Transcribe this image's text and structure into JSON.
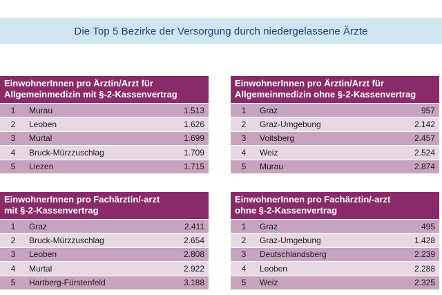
{
  "title": "Die Top 5 Bezirke der Versorgung durch niedergelassene Ärzte",
  "panels": [
    {
      "header": [
        "EinwohnerInnen pro Ärztin/Arzt für",
        "Allgemeinmedizin mit §-2-Kassenvertrag"
      ],
      "rows": [
        {
          "rank": "1",
          "name": "Murau",
          "value": "1.513"
        },
        {
          "rank": "2",
          "name": "Leoben",
          "value": "1.626"
        },
        {
          "rank": "3",
          "name": "Murtal",
          "value": "1.699"
        },
        {
          "rank": "4",
          "name": "Bruck-Mürzzuschlag",
          "value": "1.709"
        },
        {
          "rank": "5",
          "name": "Liezen",
          "value": "1.715"
        }
      ]
    },
    {
      "header": [
        "EinwohnerInnen pro Ärztin/Arzt für",
        "Allgemeinmedizin ohne §-2-Kassenvertrag"
      ],
      "rows": [
        {
          "rank": "1",
          "name": "Graz",
          "value": "957"
        },
        {
          "rank": "2",
          "name": "Graz-Umgebung",
          "value": "2.142"
        },
        {
          "rank": "3",
          "name": "Voitsberg",
          "value": "2.457"
        },
        {
          "rank": "4",
          "name": "Weiz",
          "value": "2.524"
        },
        {
          "rank": "5",
          "name": "Murau",
          "value": "2.874"
        }
      ]
    },
    {
      "header": [
        "EinwohnerInnen pro Fachärztin/-arzt",
        "mit §-2-Kassenvertrag"
      ],
      "rows": [
        {
          "rank": "1",
          "name": "Graz",
          "value": "2.411"
        },
        {
          "rank": "2",
          "name": "Bruck-Mürzzuschlag",
          "value": "2.654"
        },
        {
          "rank": "3",
          "name": "Leoben",
          "value": "2.808"
        },
        {
          "rank": "4",
          "name": "Murtal",
          "value": "2.922"
        },
        {
          "rank": "5",
          "name": "Hartberg-Fürstenfeld",
          "value": "3.188"
        }
      ]
    },
    {
      "header": [
        "EinwohnerInnen pro Fachärztin/-arzt",
        "ohne §-2-Kassenvertrag"
      ],
      "rows": [
        {
          "rank": "1",
          "name": "Graz",
          "value": "495"
        },
        {
          "rank": "2",
          "name": "Graz-Umgebung",
          "value": "1.428"
        },
        {
          "rank": "3",
          "name": "Deutschlandsberg",
          "value": "2.239"
        },
        {
          "rank": "4",
          "name": "Leoben",
          "value": "2.288"
        },
        {
          "rank": "5",
          "name": "Weiz",
          "value": "2.325"
        }
      ]
    }
  ],
  "colors": {
    "banner": "#cfe6f2",
    "title_text": "#1f3f7a",
    "header": "#8a2a68",
    "row_odd": "#c8a3bf",
    "row_even": "#e8d8e4"
  }
}
